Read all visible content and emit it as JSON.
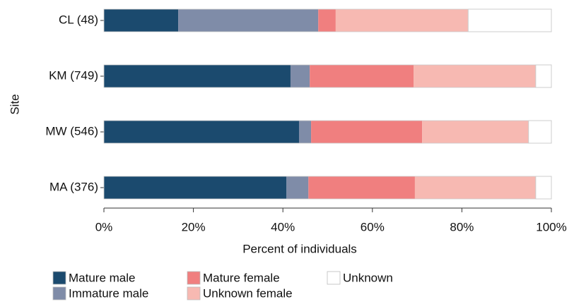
{
  "chart_data": {
    "type": "stacked-bar-horizontal",
    "x_label": "Percent of individuals",
    "y_label": "Site",
    "categories": [
      "CL (48)",
      "KM (749)",
      "MW (546)",
      "MA (376)"
    ],
    "series": [
      {
        "name": "Mature male",
        "color": "#1b4a6e",
        "values": [
          16.6,
          41.7,
          43.6,
          40.8
        ]
      },
      {
        "name": "Immature male",
        "color": "#7f8ca8",
        "values": [
          31.3,
          4.3,
          2.7,
          4.9
        ]
      },
      {
        "name": "Mature female",
        "color": "#f07f7f",
        "values": [
          3.9,
          23.2,
          24.8,
          23.8
        ]
      },
      {
        "name": "Unknown female",
        "color": "#f7b9b2",
        "values": [
          29.6,
          27.3,
          23.8,
          27.0
        ]
      },
      {
        "name": "Unknown",
        "color": "#ffffff",
        "values": [
          18.6,
          3.5,
          5.1,
          3.5
        ]
      }
    ],
    "xlim": [
      0,
      100
    ],
    "xticks": [
      {
        "value": 0,
        "label": "0%"
      },
      {
        "value": 20,
        "label": "20%"
      },
      {
        "value": 40,
        "label": "40%"
      },
      {
        "value": 60,
        "label": "60%"
      },
      {
        "value": 80,
        "label": "80%"
      },
      {
        "value": 100,
        "label": "100%"
      }
    ]
  }
}
